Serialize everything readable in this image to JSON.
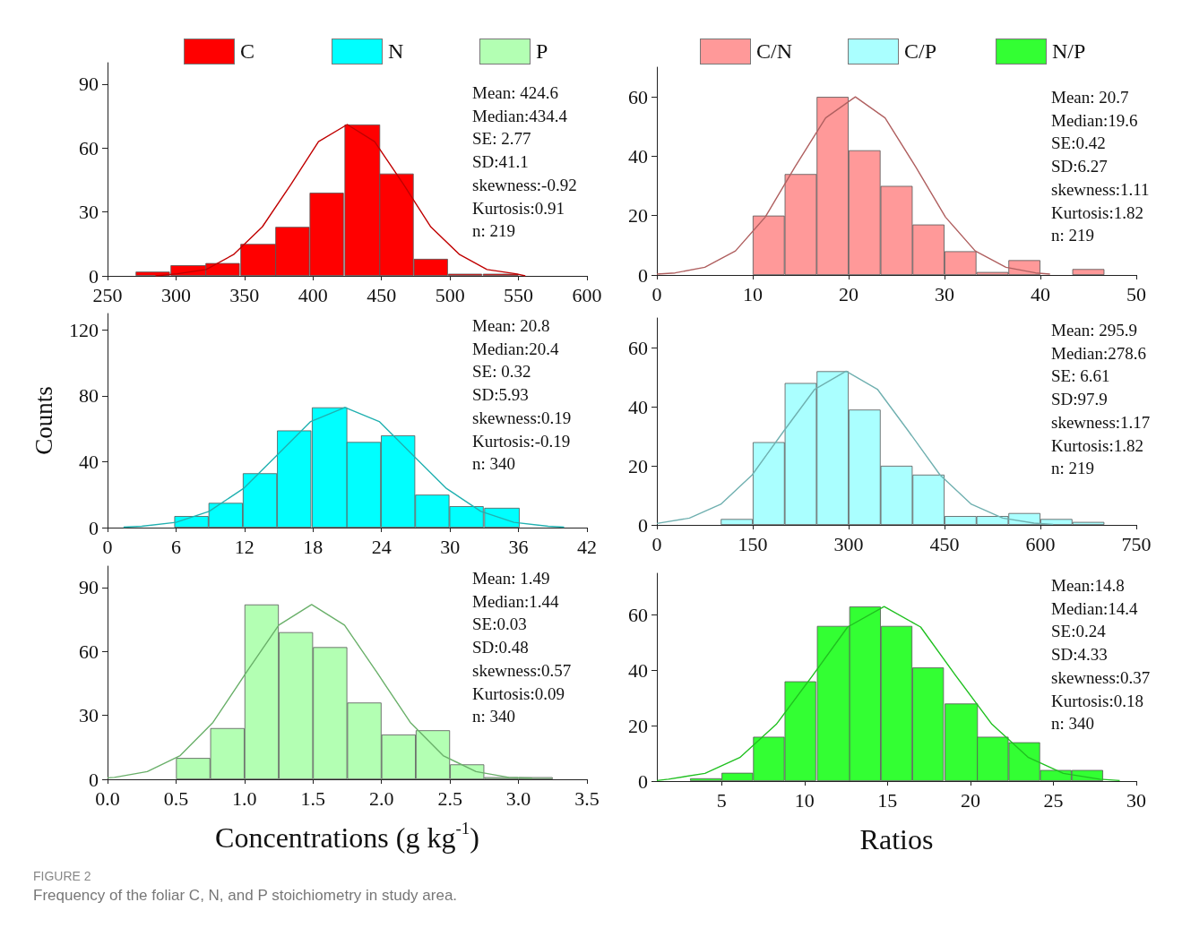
{
  "chart_data": [
    {
      "type": "histogram",
      "legend": "top",
      "xlim": [
        250,
        600
      ],
      "xticks": [
        250,
        300,
        350,
        400,
        450,
        500,
        550,
        600
      ],
      "ylim": [
        0,
        100
      ],
      "yticks": [
        0,
        30,
        60,
        90
      ],
      "annotations": [
        "Mean: 424.6",
        "Median:434.4",
        "SE: 2.77",
        "SD:41.1",
        "skewness:-0.92",
        "Kurtosis:0.91",
        "n: 219"
      ],
      "series": [
        {
          "name": "C",
          "color": "#ff0000",
          "bins": [
            271,
            296,
            322,
            347,
            373,
            398,
            423,
            449,
            474,
            499,
            524,
            550
          ],
          "values": [
            2,
            5,
            6,
            15,
            23,
            39,
            71,
            48,
            8,
            1,
            1
          ]
        },
        {
          "type": "line",
          "color": "#c00000",
          "x": [
            285,
            301,
            322,
            342,
            363,
            384,
            404,
            425,
            445,
            466,
            486,
            507,
            527,
            548,
            555
          ],
          "values": [
            0,
            1,
            3,
            10,
            23,
            43,
            63,
            71,
            63,
            43,
            23,
            10,
            3,
            1,
            0
          ]
        }
      ]
    },
    {
      "type": "histogram",
      "legend": "top",
      "xlim": [
        0,
        50
      ],
      "xticks": [
        0,
        10,
        20,
        30,
        40,
        50
      ],
      "ylim": [
        0,
        70
      ],
      "yticks": [
        0,
        20,
        40,
        60
      ],
      "annotations": [
        "Mean: 20.7",
        "Median:19.6",
        "SE:0.42",
        "SD:6.27",
        "skewness:1.11",
        "Kurtosis:1.82",
        "n: 219"
      ],
      "series": [
        {
          "name": "C/N",
          "color": "#ff9999",
          "bins": [
            10,
            13.33,
            16.67,
            20,
            23.33,
            26.67,
            30,
            33.33,
            36.67,
            40,
            43.33,
            46.67
          ],
          "values": [
            20,
            34,
            60,
            42,
            30,
            17,
            8,
            1,
            5,
            null,
            2
          ]
        },
        {
          "type": "line",
          "color": "#b06060",
          "x": [
            0,
            1.9,
            5,
            8.2,
            11.3,
            14.4,
            17.6,
            20.7,
            23.8,
            27,
            30.1,
            33.2,
            36.4,
            39.5,
            41
          ],
          "values": [
            0.3,
            0.7,
            2.6,
            8.1,
            19.5,
            36.4,
            52.9,
            60,
            52.9,
            36.4,
            19.5,
            8.1,
            2.6,
            0.7,
            0.3
          ]
        }
      ]
    },
    {
      "type": "histogram",
      "legend": "top",
      "ylabel": "Counts",
      "xlim": [
        0,
        42
      ],
      "xticks": [
        0,
        6,
        12,
        18,
        24,
        30,
        36,
        42
      ],
      "ylim": [
        0,
        130
      ],
      "yticks": [
        0,
        40,
        80,
        120
      ],
      "annotations": [
        "Mean: 20.8",
        "Median:20.4",
        "SE: 0.32",
        "SD:5.93",
        "skewness:0.19",
        "Kurtosis:-0.19",
        "n: 340"
      ],
      "series": [
        {
          "name": "N",
          "color": "#00ffff",
          "bins": [
            5.9,
            8.9,
            11.9,
            14.9,
            17.9,
            21,
            24,
            27,
            30,
            33,
            36.1
          ],
          "values": [
            7,
            15,
            33,
            59,
            73,
            52,
            56,
            20,
            13,
            12
          ]
        },
        {
          "type": "line",
          "color": "#20b0b0",
          "x": [
            1.4,
            3,
            6,
            8.9,
            11.9,
            14.9,
            17.8,
            20.8,
            23.8,
            26.7,
            29.7,
            32.7,
            35.6,
            38.6,
            40
          ],
          "values": [
            0.3,
            0.8,
            3.2,
            9.9,
            23.7,
            44.3,
            64.4,
            73,
            64.4,
            44.3,
            23.7,
            9.9,
            3.2,
            0.8,
            0.3
          ]
        }
      ]
    },
    {
      "type": "histogram",
      "legend": "top",
      "xlim": [
        0,
        750
      ],
      "xticks": [
        0,
        150,
        300,
        450,
        600,
        750
      ],
      "ylim": [
        0,
        70
      ],
      "yticks": [
        0,
        20,
        40,
        60
      ],
      "annotations": [
        "Mean: 295.9",
        "Median:278.6",
        "SE: 6.61",
        "SD:97.9",
        "skewness:1.17",
        "Kurtosis:1.82",
        "n: 219"
      ],
      "series": [
        {
          "name": "C/P",
          "color": "#aaffff",
          "bins": [
            100,
            150,
            200,
            250,
            300,
            350,
            400,
            450,
            500,
            550,
            600,
            650,
            700
          ],
          "values": [
            2,
            28,
            48,
            52,
            39,
            20,
            17,
            3,
            3,
            4,
            2,
            1
          ]
        },
        {
          "type": "line",
          "color": "#70b0b0",
          "x": [
            0,
            51,
            100,
            149,
            198,
            247,
            296,
            345,
            394,
            443,
            492,
            541,
            590,
            620
          ],
          "values": [
            0.5,
            2.3,
            7,
            16.9,
            31.6,
            45.9,
            52,
            45.9,
            31.6,
            16.9,
            7,
            2.3,
            0.6,
            0.2
          ]
        }
      ]
    },
    {
      "type": "histogram",
      "legend": "top",
      "xlabel": "Concentrations (g kg$^{-1}$)",
      "xlim": [
        0,
        3.5
      ],
      "xticks": [
        {
          "value": 0,
          "label": "0.0"
        },
        0.5,
        {
          "value": 1,
          "label": "1.0"
        },
        1.5,
        {
          "value": 2,
          "label": "2.0"
        },
        2.5,
        {
          "value": 3,
          "label": "3.0"
        },
        3.5
      ],
      "ylim": [
        0,
        100
      ],
      "yticks": [
        0,
        30,
        60,
        90
      ],
      "annotations": [
        "Mean: 1.49",
        "Median:1.44",
        "SE:0.03",
        "SD:0.48",
        "skewness:0.57",
        "Kurtosis:0.09",
        "n: 340"
      ],
      "series": [
        {
          "name": "P",
          "color": "#b3ffb3",
          "bins": [
            0.5,
            0.75,
            1,
            1.25,
            1.5,
            1.75,
            2,
            2.25,
            2.5,
            2.75,
            3,
            3.25
          ],
          "values": [
            10,
            24,
            82,
            69,
            62,
            36,
            21,
            23,
            7,
            1,
            1
          ]
        },
        {
          "type": "line",
          "color": "#6ab06a",
          "x": [
            0,
            0.05,
            0.29,
            0.53,
            0.77,
            1.01,
            1.25,
            1.49,
            1.73,
            1.97,
            2.21,
            2.45,
            2.69,
            2.93,
            3.1
          ],
          "values": [
            0.7,
            0.9,
            3.6,
            11.1,
            26.7,
            49.8,
            72.3,
            82,
            72.3,
            49.8,
            26.7,
            11.1,
            3.6,
            0.9,
            0.5
          ]
        }
      ]
    },
    {
      "type": "histogram",
      "legend": "top",
      "xlabel": "Ratios",
      "xlim": [
        1.1,
        30
      ],
      "xticks": [
        5,
        10,
        15,
        20,
        25,
        30
      ],
      "ylim": [
        0,
        75
      ],
      "yticks": [
        0,
        20,
        40,
        60
      ],
      "annotations": [
        "Mean:14.8",
        "Median:14.4",
        "SE:0.24",
        "SD:4.33",
        "skewness:0.37",
        "Kurtosis:0.18",
        "n: 340"
      ],
      "series": [
        {
          "name": "N/P",
          "color": "#33ff33",
          "bins": [
            3.1,
            5,
            6.9,
            8.8,
            10.7,
            12.7,
            14.6,
            16.5,
            18.4,
            20.4,
            22.3,
            24.2,
            26.1,
            28
          ],
          "values": [
            1,
            3,
            16,
            36,
            56,
            63,
            56,
            41,
            28,
            16,
            14,
            4,
            4
          ]
        },
        {
          "type": "line",
          "color": "#20c020",
          "x": [
            1.1,
            1.8,
            4,
            6.1,
            8.3,
            10.5,
            12.6,
            14.8,
            17,
            19.1,
            21.3,
            23.5,
            25.6,
            27.8,
            29
          ],
          "values": [
            0.2,
            0.7,
            2.8,
            8.5,
            20.5,
            38.2,
            55.6,
            63,
            55.6,
            38.2,
            20.5,
            8.5,
            2.8,
            0.7,
            0.2
          ]
        }
      ]
    },
    {
      "type": "other",
      "title": "FIGURE 2",
      "subtitle": "Frequency of the foliar C, N, and P stoichiometry in study area."
    }
  ]
}
